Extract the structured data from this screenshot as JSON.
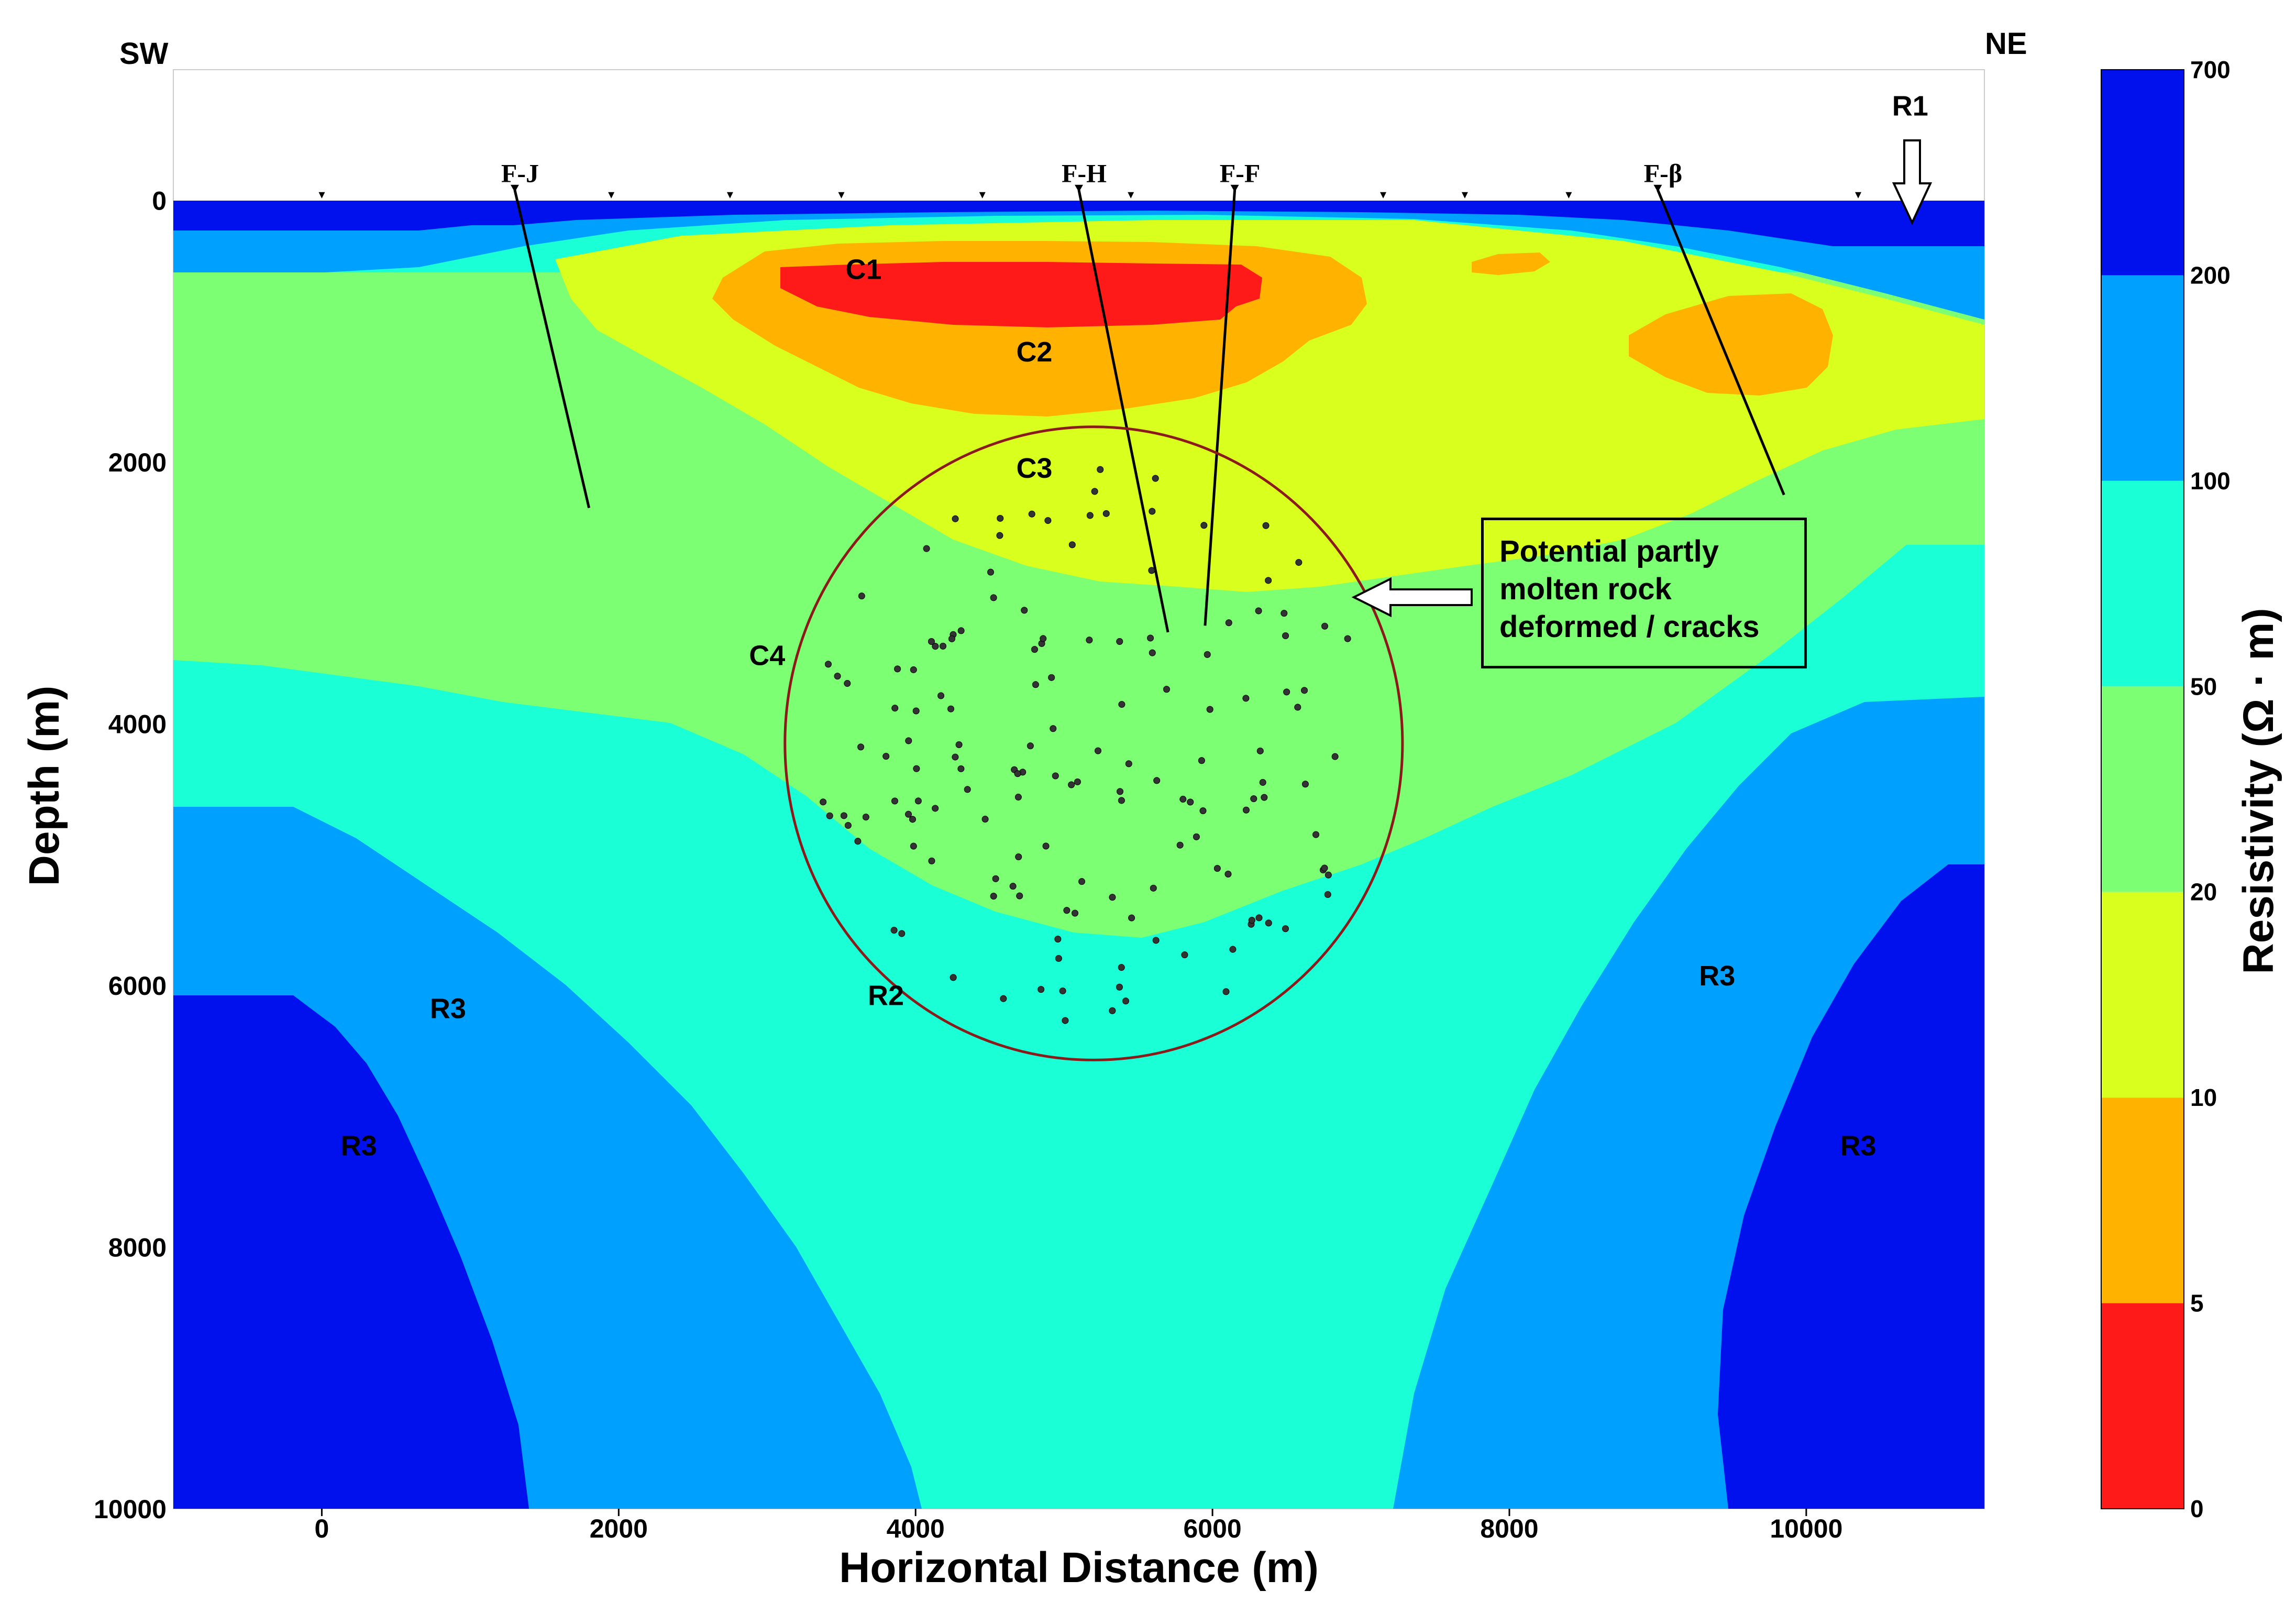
{
  "chart_data": {
    "type": "heatmap",
    "title": "",
    "xlabel": "Horizontal Distance (m)",
    "ylabel": "Depth (m)",
    "xlim": [
      -1000,
      11200
    ],
    "ylim": [
      -1000,
      10000
    ],
    "x_ticks": [
      "0",
      "2000",
      "4000",
      "6000",
      "8000",
      "10000"
    ],
    "y_ticks": [
      "0",
      "2000",
      "4000",
      "6000",
      "8000",
      "10000"
    ],
    "colorbar": {
      "label": "Resistivity (Ω · m)",
      "ticks": [
        "0",
        "5",
        "10",
        "20",
        "50",
        "100",
        "200",
        "700"
      ],
      "colors": [
        "#ff1a1a",
        "#ffb300",
        "#d9ff1f",
        "#7dff73",
        "#1affd6",
        "#00a0ff",
        "#0011ee"
      ]
    },
    "direction_left": "SW",
    "direction_right": "NE",
    "faults": [
      {
        "label": "F-J",
        "x": 1300,
        "top_depth": 0,
        "bottom_x": 1800,
        "bottom_depth": 2350
      },
      {
        "label": "F-H",
        "x": 5100,
        "top_depth": 0,
        "bottom_x": 5700,
        "bottom_depth": 3300
      },
      {
        "label": "F-F",
        "x": 6150,
        "top_depth": 0,
        "bottom_x": 5950,
        "bottom_depth": 3250
      },
      {
        "label": "F-β",
        "x": 9000,
        "top_depth": 0,
        "bottom_x": 9850,
        "bottom_depth": 2250
      }
    ],
    "stations_x": [
      0,
      1950,
      2750,
      3500,
      4450,
      5450,
      7150,
      7700,
      8400,
      10350
    ],
    "zone_labels": [
      {
        "text": "R1",
        "x": 10700,
        "depth": -650
      },
      {
        "text": "C1",
        "x": 3650,
        "depth": 600
      },
      {
        "text": "C2",
        "x": 4800,
        "depth": 1230
      },
      {
        "text": "C3",
        "x": 4800,
        "depth": 2120
      },
      {
        "text": "C4",
        "x": 3000,
        "depth": 3550
      },
      {
        "text": "R2",
        "x": 3800,
        "depth": 6150
      },
      {
        "text": "R3",
        "x": 850,
        "depth": 6250
      },
      {
        "text": "R3",
        "x": 250,
        "depth": 7300
      },
      {
        "text": "R3",
        "x": 9400,
        "depth": 6000
      },
      {
        "text": "R3",
        "x": 10350,
        "depth": 7300
      }
    ],
    "ellipse": {
      "cx": 5200,
      "cy": 4150,
      "rx": 2080,
      "ry": 2420
    },
    "annotation_lines": [
      "Potential partly",
      "molten rock",
      "deformed / cracks"
    ]
  }
}
